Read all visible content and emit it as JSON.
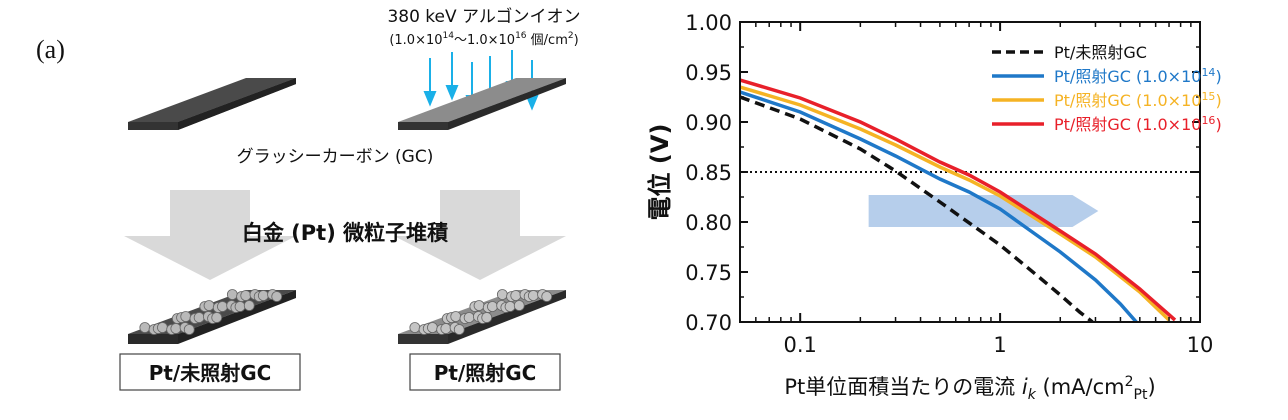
{
  "diagram": {
    "panel_label": "(a)",
    "ion_line1": "380 keV アルゴンイオン",
    "ion_line2_prefix": "(1.0×10",
    "ion_sup1": "14",
    "ion_line2_mid": "〜1.0×10",
    "ion_sup2": "16",
    "ion_line2_suffix": " 個/cm",
    "ion_sup3": "2",
    "ion_line2_end": ")",
    "substrate_label": "グラッシーカーボン (GC)",
    "process_label": "白金 (Pt) 微粒子堆積",
    "label_unirradiated": "Pt/未照射GC",
    "label_irradiated": "Pt/照射GC",
    "colors": {
      "ion_arrow": "#1ab0e8",
      "big_arrow": "#d9d9d9",
      "dark_plate": "#3a3a3a",
      "light_plate": "#8a8a8a"
    }
  },
  "chart_data": {
    "type": "line",
    "x_scale": "log",
    "xlim": [
      0.05,
      10
    ],
    "ylim": [
      0.7,
      1.0
    ],
    "x_ticks": [
      "0.1",
      "1",
      "10"
    ],
    "y_ticks": [
      "0.70",
      "0.75",
      "0.80",
      "0.85",
      "0.90",
      "0.95",
      "1.00"
    ],
    "xlabel_main": "Pt単位面積当たりの電流 ",
    "xlabel_ik": "i",
    "xlabel_ik_sub": "k",
    "xlabel_unit": " (mA/cm",
    "xlabel_sup": "2",
    "xlabel_sub_pt": "Pt",
    "xlabel_close": ")",
    "ylabel": "電位 (V)",
    "reference_line": {
      "y": 0.85,
      "style": "dotted"
    },
    "legend_position": "top-right",
    "series": [
      {
        "name": "Pt/未照射GC",
        "sup": "",
        "color": "#111111",
        "dash": true,
        "x": [
          0.05,
          0.1,
          0.2,
          0.3,
          0.5,
          1.0,
          1.5,
          2.0,
          2.5,
          2.9
        ],
        "y": [
          0.925,
          0.903,
          0.873,
          0.851,
          0.82,
          0.777,
          0.748,
          0.727,
          0.71,
          0.7
        ]
      },
      {
        "name": "Pt/照射GC (1.0×10",
        "sup": "14",
        "name_end": ")",
        "color": "#1f78c8",
        "dash": false,
        "x": [
          0.05,
          0.1,
          0.2,
          0.3,
          0.5,
          0.7,
          1.0,
          2.0,
          3.0,
          4.0,
          4.8
        ],
        "y": [
          0.93,
          0.91,
          0.883,
          0.866,
          0.843,
          0.83,
          0.813,
          0.77,
          0.742,
          0.718,
          0.7
        ]
      },
      {
        "name": "Pt/照射GC (1.0×10",
        "sup": "15",
        "name_end": ")",
        "color": "#f5b324",
        "dash": false,
        "x": [
          0.05,
          0.1,
          0.2,
          0.3,
          0.5,
          0.7,
          1.0,
          2.0,
          3.0,
          5.0,
          7.0
        ],
        "y": [
          0.935,
          0.917,
          0.893,
          0.877,
          0.855,
          0.842,
          0.826,
          0.788,
          0.765,
          0.73,
          0.702
        ]
      },
      {
        "name": "Pt/照射GC (1.0×10",
        "sup": "16",
        "name_end": ")",
        "color": "#e8202a",
        "dash": false,
        "x": [
          0.05,
          0.1,
          0.2,
          0.3,
          0.5,
          0.7,
          1.0,
          2.0,
          3.0,
          5.0,
          7.5
        ],
        "y": [
          0.942,
          0.924,
          0.9,
          0.883,
          0.86,
          0.847,
          0.83,
          0.791,
          0.768,
          0.733,
          0.702
        ]
      }
    ],
    "colors": {
      "shift_arrow": "#a9c6e8"
    }
  }
}
